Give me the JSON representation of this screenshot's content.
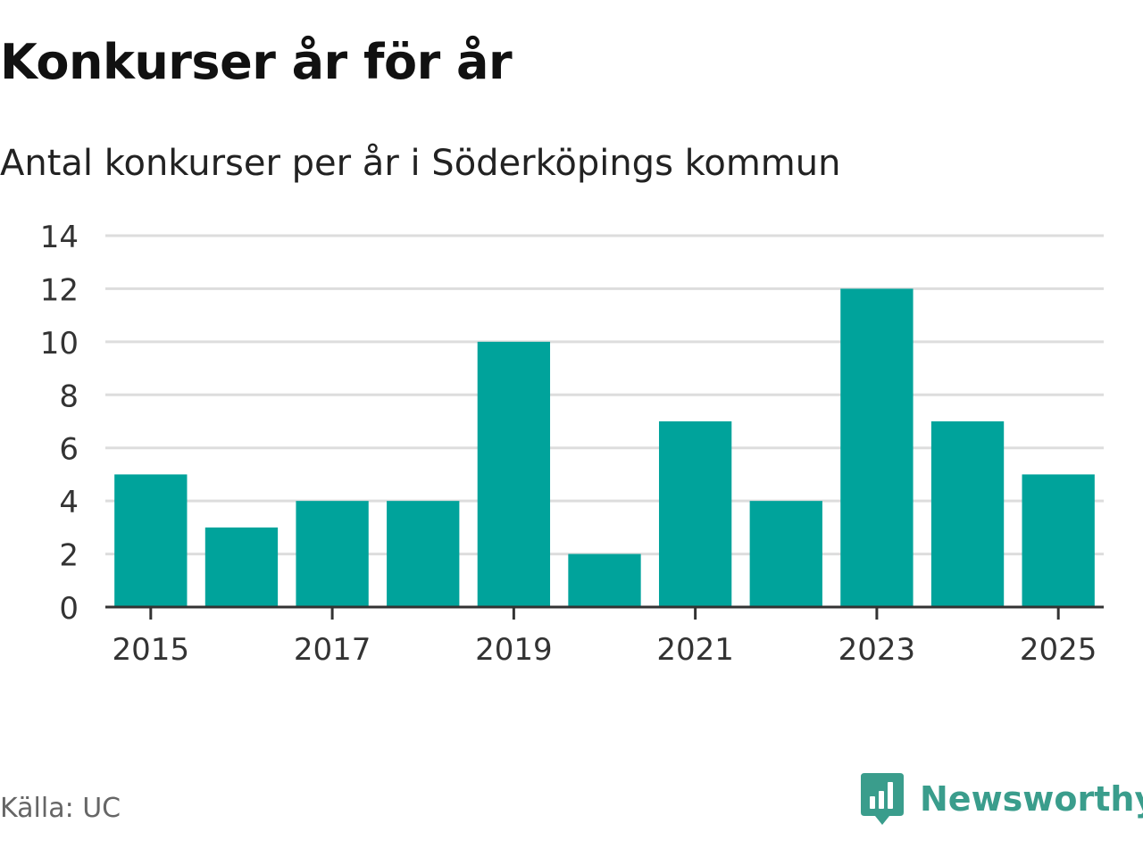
{
  "header": {
    "title": "Konkurser år för år",
    "subtitle": "Antal konkurser per år i Söderköpings kommun"
  },
  "footer": {
    "source": "Källa: UC",
    "brand": "Newsworthy",
    "brand_icon": "newsworthy-logo-icon"
  },
  "colors": {
    "bar": "#00a39b",
    "grid": "#dddddd",
    "axis": "#333333",
    "brand": "#3a9d8c"
  },
  "chart_data": {
    "type": "bar",
    "title": "Konkurser år för år",
    "subtitle": "Antal konkurser per år i Söderköpings kommun",
    "categories": [
      "2015",
      "2016",
      "2017",
      "2018",
      "2019",
      "2020",
      "2021",
      "2022",
      "2023",
      "2024",
      "2025"
    ],
    "values": [
      5,
      3,
      4,
      4,
      10,
      2,
      7,
      4,
      12,
      7,
      5
    ],
    "x_tick_labels": [
      "2015",
      "2017",
      "2019",
      "2021",
      "2023",
      "2025"
    ],
    "y_ticks": [
      0,
      2,
      4,
      6,
      8,
      10,
      12,
      14
    ],
    "ylim": [
      0,
      14
    ],
    "xlabel": "",
    "ylabel": "",
    "grid": true,
    "legend": "none"
  }
}
